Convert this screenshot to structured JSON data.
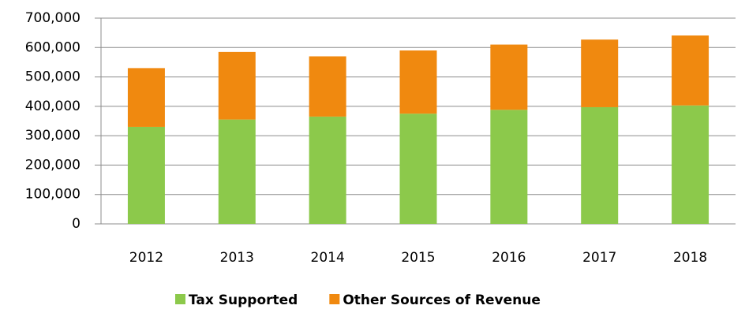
{
  "chart_data": {
    "type": "stacked_bar",
    "categories": [
      "2012",
      "2013",
      "2014",
      "2015",
      "2016",
      "2017",
      "2018"
    ],
    "series": [
      {
        "name": "Tax Supported",
        "color": "#8cc94b",
        "values": [
          330000,
          355000,
          365000,
          375000,
          388000,
          397000,
          403000
        ]
      },
      {
        "name": "Other Sources of Revenue",
        "color": "#f0890f",
        "values": [
          200000,
          230000,
          205000,
          215000,
          222000,
          230000,
          238000
        ]
      }
    ],
    "ylim": [
      0,
      700000
    ],
    "yticks": [
      0,
      {
        "value": 100000,
        "label": "100,000"
      },
      {
        "value": 200000,
        "label": "200,000"
      },
      {
        "value": 300000,
        "label": "300,000"
      },
      {
        "value": 400000,
        "label": "400,000"
      },
      {
        "value": 500000,
        "label": "500,000"
      },
      {
        "value": 600000,
        "label": "600,000"
      },
      {
        "value": 700000,
        "label": "700,000"
      }
    ],
    "grid": true,
    "legend": "bottom"
  }
}
